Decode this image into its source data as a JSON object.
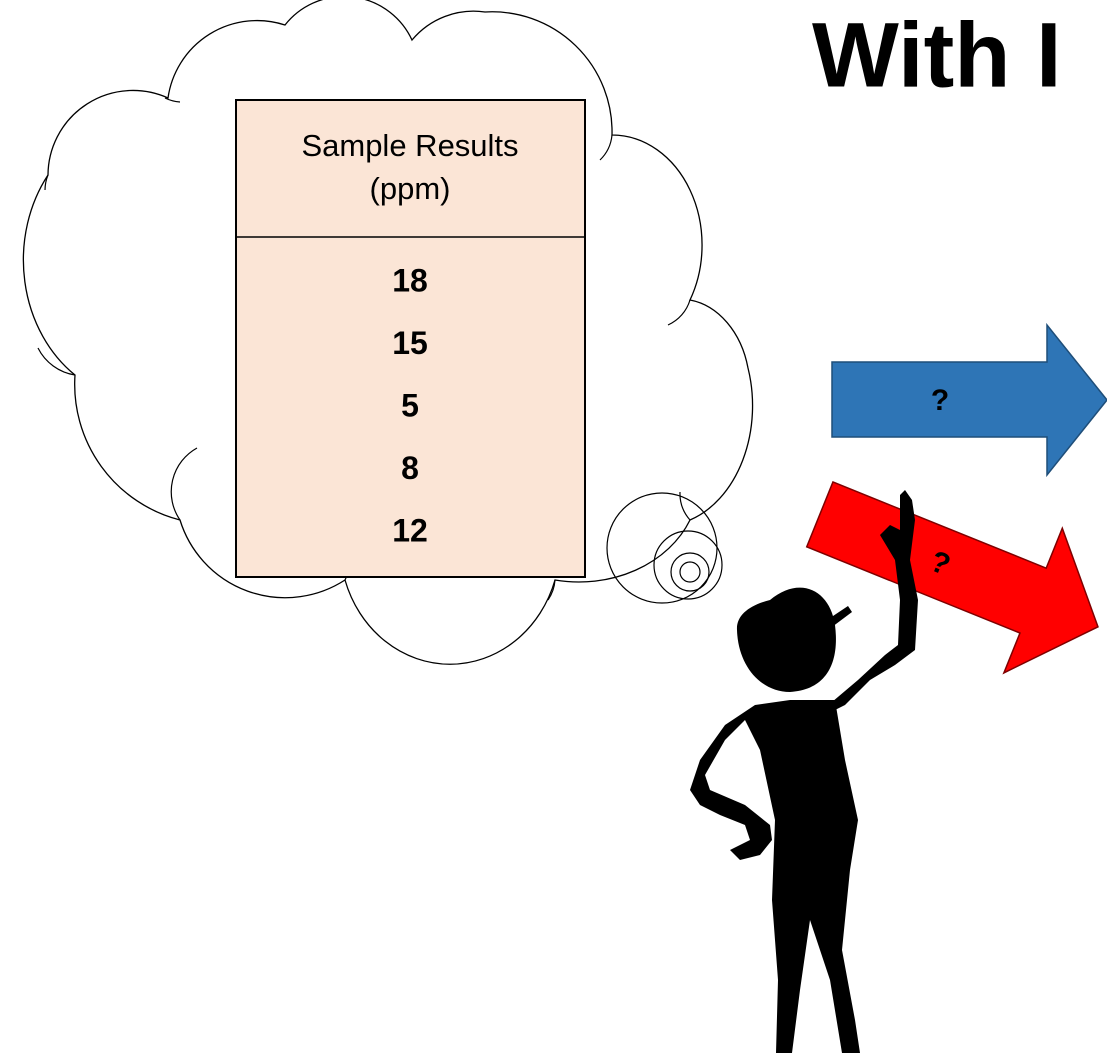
{
  "title": "With I",
  "table": {
    "header": [
      "Sample Results",
      "(ppm)"
    ],
    "rows": [
      18,
      15,
      5,
      8,
      12
    ]
  },
  "arrows": [
    {
      "label": "?"
    },
    {
      "label": "?"
    }
  ]
}
